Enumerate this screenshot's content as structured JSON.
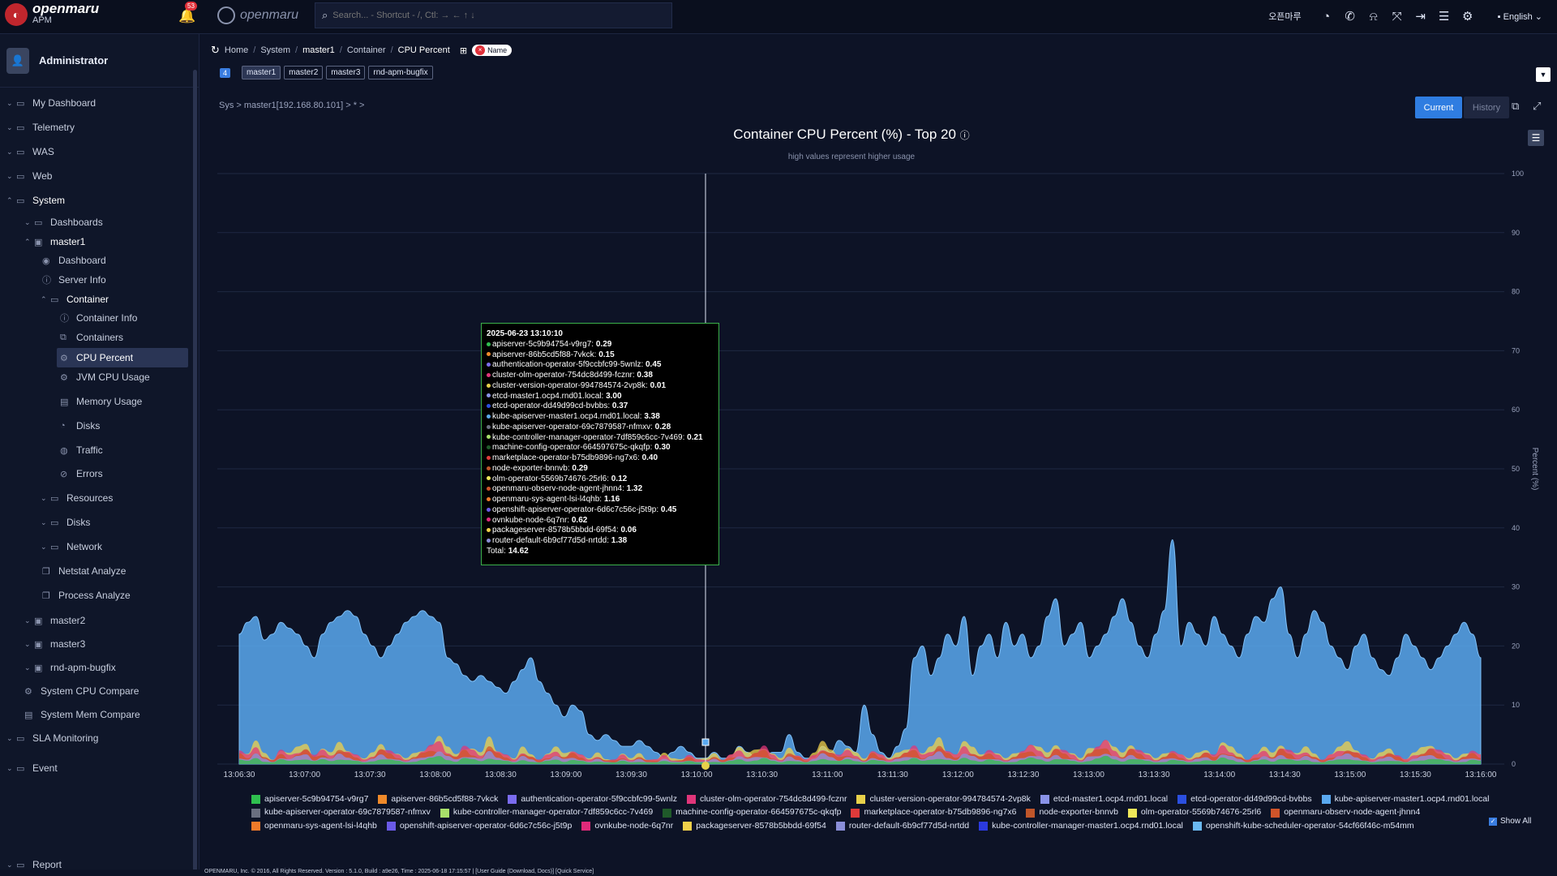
{
  "app": {
    "brand": "openmaru",
    "product": "APM",
    "notification_count": "53",
    "brand2": "openmaru"
  },
  "search": {
    "placeholder": "Search... - Shortcut - /, Ctl: → ← ↑ ↓"
  },
  "topbar": {
    "korean_label": "오픈마루",
    "language": "English"
  },
  "sidebar": {
    "user": "Administrator",
    "items": [
      {
        "label": "My Dashboard"
      },
      {
        "label": "Telemetry"
      },
      {
        "label": "WAS"
      },
      {
        "label": "Web"
      },
      {
        "label": "System"
      },
      {
        "label": "Dashboards"
      },
      {
        "label": "master1"
      },
      {
        "label": "Dashboard"
      },
      {
        "label": "Server Info"
      },
      {
        "label": "Container"
      },
      {
        "label": "Container Info"
      },
      {
        "label": "Containers"
      },
      {
        "label": "CPU Percent"
      },
      {
        "label": "JVM CPU Usage"
      },
      {
        "label": "Memory Usage"
      },
      {
        "label": "Disks"
      },
      {
        "label": "Traffic"
      },
      {
        "label": "Errors"
      },
      {
        "label": "Resources"
      },
      {
        "label": "Disks"
      },
      {
        "label": "Network"
      },
      {
        "label": "Netstat Analyze"
      },
      {
        "label": "Process Analyze"
      },
      {
        "label": "master2"
      },
      {
        "label": "master3"
      },
      {
        "label": "rnd-apm-bugfix"
      },
      {
        "label": "System CPU Compare"
      },
      {
        "label": "System Mem Compare"
      },
      {
        "label": "SLA Monitoring"
      },
      {
        "label": "Event"
      },
      {
        "label": "Report"
      }
    ]
  },
  "breadcrumb": [
    "Home",
    "System",
    "master1",
    "Container",
    "CPU Percent"
  ],
  "name_chip": "Name",
  "host_tabs": {
    "count": "4",
    "tabs": [
      "master1",
      "master2",
      "master3",
      "rnd-apm-bugfix"
    ]
  },
  "path": "Sys > master1[192.168.80.101] > * >",
  "buttons": {
    "current": "Current",
    "history": "History"
  },
  "tooltip": {
    "time": "2025-06-23 13:10:10",
    "rows": [
      {
        "name": "apiserver-5c9b94754-v9rg7",
        "value": "0.29",
        "color": "#2fbf4f"
      },
      {
        "name": "apiserver-86b5cd5f88-7vkck",
        "value": "0.15",
        "color": "#f08a2a"
      },
      {
        "name": "authentication-operator-5f9ccbfc99-5wnlz",
        "value": "0.45",
        "color": "#7b6cf0"
      },
      {
        "name": "cluster-olm-operator-754dc8d499-fcznr",
        "value": "0.38",
        "color": "#e0357a"
      },
      {
        "name": "cluster-version-operator-994784574-2vp8k",
        "value": "0.01",
        "color": "#e8d14a"
      },
      {
        "name": "etcd-master1.ocp4.rnd01.local",
        "value": "3.00",
        "color": "#8a93e8"
      },
      {
        "name": "etcd-operator-dd49d99cd-bvbbs",
        "value": "0.37",
        "color": "#2b4fe0"
      },
      {
        "name": "kube-apiserver-master1.ocp4.rnd01.local",
        "value": "3.38",
        "color": "#5aa9f0"
      },
      {
        "name": "kube-apiserver-operator-69c7879587-nfmxv",
        "value": "0.28",
        "color": "#6a6f80"
      },
      {
        "name": "kube-controller-manager-operator-7df859c6cc-7v469",
        "value": "0.21",
        "color": "#a8e06a"
      },
      {
        "name": "machine-config-operator-664597675c-qkqfp",
        "value": "0.30",
        "color": "#1f5a2a"
      },
      {
        "name": "marketplace-operator-b75db9896-ng7x6",
        "value": "0.40",
        "color": "#e03a3a"
      },
      {
        "name": "node-exporter-bnnvb",
        "value": "0.29",
        "color": "#c0562a"
      },
      {
        "name": "olm-operator-5569b74676-25rl6",
        "value": "0.12",
        "color": "#f0e85a"
      },
      {
        "name": "openmaru-observ-node-agent-jhnn4",
        "value": "1.32",
        "color": "#d0542a"
      },
      {
        "name": "openmaru-sys-agent-lsi-l4qhb",
        "value": "1.16",
        "color": "#f07a2a"
      },
      {
        "name": "openshift-apiserver-operator-6d6c7c56c-j5t9p",
        "value": "0.45",
        "color": "#6a5ae8"
      },
      {
        "name": "ovnkube-node-6q7nr",
        "value": "0.62",
        "color": "#e02a7a"
      },
      {
        "name": "packageserver-8578b5bbdd-69f54",
        "value": "0.06",
        "color": "#f0d04a"
      },
      {
        "name": "router-default-6b9cf77d5d-nrtdd",
        "value": "1.38",
        "color": "#8a8ed8"
      }
    ],
    "total_label": "Total:",
    "total": "14.62"
  },
  "chart_data": {
    "type": "area",
    "title": "Container CPU Percent (%) - Top 20",
    "subtitle": "high values represent higher usage",
    "ylabel": "Percent (%)",
    "ylim": [
      0,
      100
    ],
    "yticks": [
      0,
      10,
      20,
      30,
      40,
      50,
      60,
      70,
      80,
      90,
      100
    ],
    "xticks": [
      "13:06:30",
      "13:07:00",
      "13:07:30",
      "13:08:00",
      "13:08:30",
      "13:09:00",
      "13:09:30",
      "13:10:00",
      "13:10:30",
      "13:11:00",
      "13:11:30",
      "13:12:00",
      "13:12:30",
      "13:13:00",
      "13:13:30",
      "13:14:00",
      "13:14:30",
      "13:15:00",
      "13:15:30",
      "13:16:00"
    ],
    "cursor_time": "13:10:10",
    "legend_position": "bottom",
    "grid": true,
    "series": [
      {
        "name": "apiserver-5c9b94754-v9rg7",
        "color": "#2fbf4f"
      },
      {
        "name": "apiserver-86b5cd5f88-7vkck",
        "color": "#f08a2a"
      },
      {
        "name": "authentication-operator-5f9ccbfc99-5wnlz",
        "color": "#7b6cf0"
      },
      {
        "name": "cluster-olm-operator-754dc8d499-fcznr",
        "color": "#e0357a"
      },
      {
        "name": "cluster-version-operator-994784574-2vp8k",
        "color": "#e8d14a"
      },
      {
        "name": "etcd-master1.ocp4.rnd01.local",
        "color": "#8a93e8"
      },
      {
        "name": "etcd-operator-dd49d99cd-bvbbs",
        "color": "#2b4fe0"
      },
      {
        "name": "kube-apiserver-master1.ocp4.rnd01.local",
        "color": "#5aa9f0"
      },
      {
        "name": "kube-apiserver-operator-69c7879587-nfmxv",
        "color": "#6a6f80"
      },
      {
        "name": "kube-controller-manager-operator-7df859c6cc-7v469",
        "color": "#a8e06a"
      },
      {
        "name": "machine-config-operator-664597675c-qkqfp",
        "color": "#1f5a2a"
      },
      {
        "name": "marketplace-operator-b75db9896-ng7x6",
        "color": "#e03a3a"
      },
      {
        "name": "node-exporter-bnnvb",
        "color": "#c0562a"
      },
      {
        "name": "olm-operator-5569b74676-25rl6",
        "color": "#f0e85a"
      },
      {
        "name": "openmaru-observ-node-agent-jhnn4",
        "color": "#d0542a"
      },
      {
        "name": "openmaru-sys-agent-lsi-l4qhb",
        "color": "#f07a2a"
      },
      {
        "name": "openshift-apiserver-operator-6d6c7c56c-j5t9p",
        "color": "#6a5ae8"
      },
      {
        "name": "ovnkube-node-6q7nr",
        "color": "#e02a7a"
      },
      {
        "name": "packageserver-8578b5bbdd-69f54",
        "color": "#f0d04a"
      },
      {
        "name": "router-default-6b9cf77d5d-nrtdd",
        "color": "#8a8ed8"
      },
      {
        "name": "kube-controller-manager-master1.ocp4.rnd01.local",
        "color": "#2b3ae0"
      },
      {
        "name": "openshift-kube-scheduler-operator-54cf66f46c-m54mm",
        "color": "#6ab8f0"
      }
    ],
    "main_series_values": [
      22,
      24,
      25,
      21,
      22,
      24,
      23,
      22,
      20,
      18,
      22,
      24,
      25,
      26,
      25,
      22,
      20,
      18,
      20,
      22,
      24,
      25,
      26,
      25,
      24,
      18,
      17,
      15,
      14,
      15,
      14,
      13,
      12,
      14,
      16,
      18,
      14,
      12,
      10,
      8,
      10,
      9,
      5,
      4,
      5,
      4,
      3,
      3,
      4,
      3,
      2,
      1,
      2,
      3,
      2,
      1,
      1,
      2,
      1,
      1,
      3,
      2,
      1,
      1,
      2,
      2,
      5,
      2,
      1,
      1,
      3,
      2,
      4,
      3,
      2,
      10,
      5,
      2,
      1,
      3,
      6,
      18,
      20,
      15,
      18,
      22,
      20,
      25,
      15,
      20,
      22,
      18,
      24,
      20,
      22,
      18,
      20,
      25,
      28,
      20,
      22,
      24,
      18,
      20,
      22,
      25,
      28,
      24,
      20,
      18,
      22,
      26,
      38,
      20,
      24,
      22,
      20,
      25,
      22,
      20,
      18,
      22,
      25,
      24,
      28,
      30,
      22,
      18,
      22,
      26,
      24,
      20,
      18,
      16,
      20,
      22,
      18,
      16,
      15,
      18,
      22,
      20,
      18,
      16,
      18,
      20,
      22,
      24,
      22,
      18
    ],
    "stack_series_values": [
      3,
      2,
      4,
      2,
      1,
      3,
      2,
      3,
      4,
      2,
      3,
      2,
      4,
      3,
      2,
      1,
      2,
      4,
      3,
      2,
      1,
      2,
      3,
      4,
      5,
      3,
      2,
      4,
      3,
      2,
      5,
      3,
      2,
      1,
      3,
      2,
      1,
      2,
      3,
      2,
      3,
      2,
      1,
      2,
      1,
      1,
      2,
      1,
      2,
      1,
      1,
      2,
      1,
      1,
      2,
      1,
      1,
      2,
      1,
      2,
      3,
      2,
      3,
      4,
      2,
      1,
      3,
      2,
      1,
      2,
      4,
      3,
      2,
      3,
      2,
      1,
      3,
      2,
      1,
      2,
      3,
      4,
      2,
      3,
      5,
      3,
      2,
      4,
      3,
      2,
      3,
      2,
      1,
      2,
      3,
      4,
      3,
      2,
      4,
      3,
      2,
      1,
      3,
      4,
      5,
      3,
      2,
      4,
      3,
      2,
      1,
      2,
      3,
      2,
      1,
      2,
      3,
      2,
      4,
      3,
      2,
      1,
      2,
      3,
      2,
      4,
      3,
      2,
      3,
      2,
      1,
      2,
      3,
      4,
      3,
      2,
      1,
      2,
      3,
      2,
      1,
      2,
      3,
      4,
      3,
      2,
      1,
      2,
      3,
      2
    ],
    "total_at_cursor": 14.62
  },
  "legend_items": [
    {
      "name": "apiserver-5c9b94754-v9rg7",
      "color": "#2fbf4f"
    },
    {
      "name": "apiserver-86b5cd5f88-7vkck",
      "color": "#f08a2a"
    },
    {
      "name": "authentication-operator-5f9ccbfc99-5wnlz",
      "color": "#7b6cf0"
    },
    {
      "name": "cluster-olm-operator-754dc8d499-fcznr",
      "color": "#e0357a"
    },
    {
      "name": "cluster-version-operator-994784574-2vp8k",
      "color": "#e8d14a"
    },
    {
      "name": "etcd-master1.ocp4.rnd01.local",
      "color": "#8a93e8"
    },
    {
      "name": "etcd-operator-dd49d99cd-bvbbs",
      "color": "#2b4fe0"
    },
    {
      "name": "kube-apiserver-master1.ocp4.rnd01.local",
      "color": "#5aa9f0"
    },
    {
      "name": "kube-apiserver-operator-69c7879587-nfmxv",
      "color": "#6a6f80"
    },
    {
      "name": "kube-controller-manager-operator-7df859c6cc-7v469",
      "color": "#a8e06a"
    },
    {
      "name": "machine-config-operator-664597675c-qkqfp",
      "color": "#1f5a2a"
    },
    {
      "name": "marketplace-operator-b75db9896-ng7x6",
      "color": "#e03a3a"
    },
    {
      "name": "node-exporter-bnnvb",
      "color": "#c0562a"
    },
    {
      "name": "olm-operator-5569b74676-25rl6",
      "color": "#f0e85a"
    },
    {
      "name": "openmaru-observ-node-agent-jhnn4",
      "color": "#d0542a"
    },
    {
      "name": "openmaru-sys-agent-lsi-l4qhb",
      "color": "#f07a2a"
    },
    {
      "name": "openshift-apiserver-operator-6d6c7c56c-j5t9p",
      "color": "#6a5ae8"
    },
    {
      "name": "ovnkube-node-6q7nr",
      "color": "#e02a7a"
    },
    {
      "name": "packageserver-8578b5bbdd-69f54",
      "color": "#f0d04a"
    },
    {
      "name": "router-default-6b9cf77d5d-nrtdd",
      "color": "#8a8ed8"
    },
    {
      "name": "kube-controller-manager-master1.ocp4.rnd01.local",
      "color": "#2b3ae0"
    },
    {
      "name": "openshift-kube-scheduler-operator-54cf66f46c-m54mm",
      "color": "#6ab8f0"
    }
  ],
  "show_all": "Show All",
  "footer": "OPENMARU, Inc. © 2016, All Rights Reserved. Version : 5.1.0, Build : a9e26, Time : 2025-06-18 17:15:57  |  [User Guide (Download, Docs)] [Quick Service]"
}
